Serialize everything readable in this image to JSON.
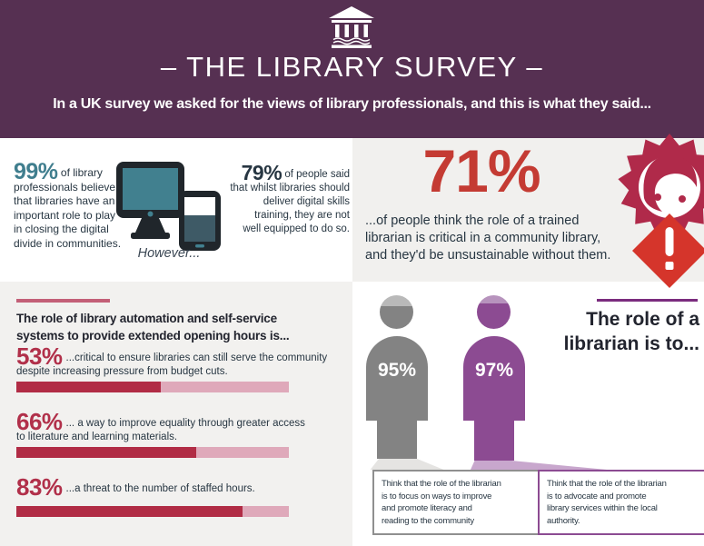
{
  "header": {
    "icon": "library-building-icon",
    "title": "– THE LIBRARY SURVEY –",
    "subtitle": "In a UK survey we asked for the views of library professionals, and this is what they said..."
  },
  "digital_section": {
    "stat99": {
      "value": "99%",
      "lines": [
        "of library",
        "professionals believe",
        "that libraries have an",
        "important role to play",
        "in closing the digital",
        "divide in communities."
      ]
    },
    "however": "However...",
    "stat79": {
      "value": "79%",
      "lines": [
        "of people said",
        "that whilst libraries should",
        "deliver digital skills",
        "training, they are not",
        "well equipped to do so."
      ]
    }
  },
  "critical_section": {
    "value": "71%",
    "lines": [
      "...of people think the role of a trained",
      "librarian is critical in a community library,",
      "and they'd be unsustainable without them."
    ]
  },
  "automation_section": {
    "heading_lines": [
      "The role of library automation and self-service",
      "systems to provide extended opening hours is..."
    ],
    "stats": [
      {
        "label": "53%",
        "value": 53,
        "lines": [
          "...critical to ensure libraries can still serve the community",
          "despite increasing pressure from budget cuts."
        ]
      },
      {
        "label": "66%",
        "value": 66,
        "lines": [
          "... a way to improve equality through greater access",
          "to literature and learning materials."
        ]
      },
      {
        "label": "83%",
        "value": 83,
        "lines": [
          "...a threat to the number of staffed hours."
        ]
      }
    ]
  },
  "role_section": {
    "heading_lines": [
      "The role of a",
      "librarian is to..."
    ],
    "figures": [
      {
        "label": "95%",
        "value": 95,
        "color": "#838383",
        "lines": [
          "Think that the role of the librarian",
          "is to focus on ways to improve",
          "and promote literacy and",
          "reading to the community"
        ]
      },
      {
        "label": "97%",
        "value": 97,
        "color": "#8c4b92",
        "lines": [
          "Think that the role of the librarian",
          "is to advocate and promote",
          "library services within the local",
          "authority."
        ]
      }
    ]
  },
  "colors": {
    "header_purple": "#563052",
    "panel_gray": "#f1f0ee",
    "teal": "#407e8e",
    "navy_text": "#273642",
    "crimson": "#b1304a",
    "bar_fill": "#b12c45",
    "bar_track": "#dfa9ba",
    "red_71": "#c43b33",
    "starburst_red": "#b02a4a",
    "diamond_red": "#d5352b",
    "figure_gray": "#838383",
    "figure_purple": "#8c4b92",
    "divider_pink": "#c35f77",
    "divider_purple": "#7b2c7e"
  },
  "chart_data": [
    {
      "type": "bar",
      "title": "The role of library automation and self-service systems to provide extended opening hours is...",
      "categories": [
        "critical to ensure libraries can still serve the community despite increasing pressure from budget cuts",
        "a way to improve equality through greater access to literature and learning materials",
        "a threat to the number of staffed hours"
      ],
      "values": [
        53,
        66,
        83
      ],
      "unit": "percent",
      "xlim": [
        0,
        100
      ],
      "bar_color": "#b12c45",
      "track_color": "#dfa9ba",
      "orientation": "horizontal"
    },
    {
      "type": "pictogram",
      "title": "The role of a librarian is to...",
      "categories": [
        "Think that the role of the librarian is to focus on ways to improve and promote literacy and reading to the community",
        "Think that the role of the librarian is to advocate and promote library services within the local authority."
      ],
      "values": [
        95,
        97
      ],
      "unit": "percent",
      "colors": [
        "#838383",
        "#8c4b92"
      ]
    },
    {
      "type": "stat",
      "values": [
        99,
        79,
        71
      ],
      "labels": [
        "99% of library professionals believe that libraries have an important role to play in closing the digital divide in communities.",
        "79% of people said that whilst libraries should deliver digital skills training, they are not well equipped to do so.",
        "71% of people think the role of a trained librarian is critical in a community library, and they'd be unsustainable without them."
      ]
    }
  ]
}
